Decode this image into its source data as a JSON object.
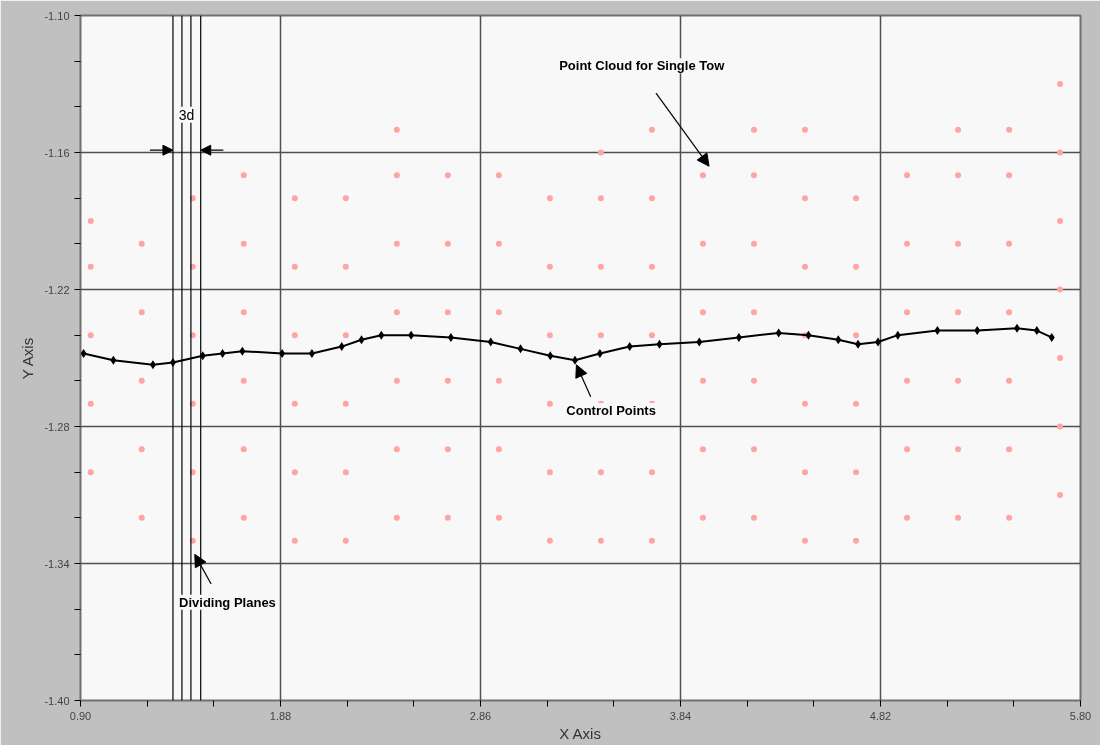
{
  "chart_data": {
    "type": "scatter",
    "xlabel": "X Axis",
    "ylabel": "Y Axis",
    "xlim": [
      0.9,
      5.8
    ],
    "xticks": [
      {
        "value": 0.9,
        "label": "0.90"
      },
      {
        "value": 1.227,
        "label": null
      },
      {
        "value": 1.553,
        "label": null
      },
      1.88,
      {
        "value": 2.207,
        "label": null
      },
      {
        "value": 2.533,
        "label": null
      },
      2.86,
      {
        "value": 3.187,
        "label": null
      },
      {
        "value": 3.513,
        "label": null
      },
      3.84,
      {
        "value": 4.167,
        "label": null
      },
      {
        "value": 4.493,
        "label": null
      },
      4.82,
      {
        "value": 5.147,
        "label": null
      },
      {
        "value": 5.473,
        "label": null
      },
      {
        "value": 5.8,
        "label": "5.80"
      }
    ],
    "ylim": [
      -1.4,
      -1.1
    ],
    "yticks": [
      {
        "value": -1.4,
        "label": "-1.40"
      },
      {
        "value": -1.38,
        "label": null
      },
      {
        "value": -1.36,
        "label": null
      },
      -1.34,
      {
        "value": -1.32,
        "label": null
      },
      {
        "value": -1.3,
        "label": null
      },
      -1.28,
      {
        "value": -1.26,
        "label": null
      },
      {
        "value": -1.24,
        "label": null
      },
      -1.22,
      {
        "value": -1.2,
        "label": null
      },
      {
        "value": -1.18,
        "label": null
      },
      -1.16,
      {
        "value": -1.14,
        "label": null
      },
      {
        "value": -1.12,
        "label": null
      },
      {
        "value": -1.1,
        "label": "-1.10"
      }
    ],
    "grid": true,
    "series": [
      {
        "color": "#ffa3a3",
        "marker": "circle",
        "x": [
          0.95,
          0.95,
          0.95,
          0.95,
          0.95,
          1.2,
          1.2,
          1.2,
          1.2,
          1.2,
          1.45,
          1.45,
          1.45,
          1.45,
          1.45,
          1.45,
          1.7,
          1.7,
          1.7,
          1.7,
          1.7,
          1.7,
          1.95,
          1.95,
          1.95,
          1.95,
          1.95,
          1.95,
          2.2,
          2.2,
          2.2,
          2.2,
          2.2,
          2.2,
          2.45,
          2.45,
          2.45,
          2.45,
          2.45,
          2.45,
          2.45,
          2.7,
          2.7,
          2.7,
          2.7,
          2.7,
          2.7,
          2.95,
          2.95,
          2.95,
          2.95,
          2.95,
          2.95,
          3.2,
          3.2,
          3.2,
          3.2,
          3.2,
          3.2,
          3.45,
          3.45,
          3.45,
          3.45,
          3.45,
          3.45,
          3.45,
          3.7,
          3.7,
          3.7,
          3.7,
          3.7,
          3.7,
          3.7,
          3.95,
          3.95,
          3.95,
          3.95,
          3.95,
          3.95,
          4.2,
          4.2,
          4.2,
          4.2,
          4.2,
          4.2,
          4.2,
          4.45,
          4.45,
          4.45,
          4.45,
          4.45,
          4.45,
          4.45,
          4.7,
          4.7,
          4.7,
          4.7,
          4.7,
          4.7,
          4.95,
          4.95,
          4.95,
          4.95,
          4.95,
          4.95,
          5.2,
          5.2,
          5.2,
          5.2,
          5.2,
          5.2,
          5.2,
          5.45,
          5.45,
          5.45,
          5.45,
          5.45,
          5.45,
          5.45,
          5.7,
          5.7,
          5.7,
          5.7,
          5.7,
          5.7,
          5.7
        ],
        "values": [
          -1.3,
          -1.27,
          -1.24,
          -1.21,
          -1.19,
          -1.32,
          -1.29,
          -1.26,
          -1.23,
          -1.2,
          -1.33,
          -1.3,
          -1.27,
          -1.24,
          -1.21,
          -1.18,
          -1.32,
          -1.29,
          -1.26,
          -1.23,
          -1.2,
          -1.17,
          -1.33,
          -1.3,
          -1.27,
          -1.24,
          -1.21,
          -1.18,
          -1.33,
          -1.3,
          -1.27,
          -1.24,
          -1.21,
          -1.18,
          -1.32,
          -1.29,
          -1.26,
          -1.23,
          -1.2,
          -1.17,
          -1.15,
          -1.32,
          -1.29,
          -1.26,
          -1.23,
          -1.2,
          -1.17,
          -1.32,
          -1.29,
          -1.26,
          -1.23,
          -1.2,
          -1.17,
          -1.33,
          -1.3,
          -1.27,
          -1.24,
          -1.21,
          -1.18,
          -1.33,
          -1.3,
          -1.27,
          -1.24,
          -1.21,
          -1.18,
          -1.16,
          -1.33,
          -1.3,
          -1.27,
          -1.24,
          -1.21,
          -1.18,
          -1.15,
          -1.32,
          -1.29,
          -1.26,
          -1.23,
          -1.2,
          -1.17,
          -1.32,
          -1.29,
          -1.26,
          -1.23,
          -1.2,
          -1.17,
          -1.15,
          -1.33,
          -1.3,
          -1.27,
          -1.24,
          -1.21,
          -1.18,
          -1.15,
          -1.33,
          -1.3,
          -1.27,
          -1.24,
          -1.21,
          -1.18,
          -1.32,
          -1.29,
          -1.26,
          -1.23,
          -1.2,
          -1.17,
          -1.32,
          -1.29,
          -1.26,
          -1.23,
          -1.2,
          -1.17,
          -1.15,
          -1.32,
          -1.29,
          -1.26,
          -1.23,
          -1.2,
          -1.17,
          -1.15,
          -1.31,
          -1.28,
          -1.25,
          -1.22,
          -1.19,
          -1.16,
          -1.13
        ]
      },
      {
        "type": "line",
        "color": "#000000",
        "marker": "diamond",
        "x": [
          0.915,
          1.061,
          1.255,
          1.353,
          1.499,
          1.596,
          1.693,
          1.888,
          2.034,
          2.18,
          2.277,
          2.374,
          2.52,
          2.715,
          2.91,
          3.056,
          3.202,
          3.323,
          3.445,
          3.591,
          3.737,
          3.932,
          4.126,
          4.321,
          4.467,
          4.613,
          4.71,
          4.808,
          4.905,
          5.099,
          5.294,
          5.489,
          5.586,
          5.659
        ],
        "values": [
          -1.248,
          -1.251,
          -1.253,
          -1.252,
          -1.249,
          -1.248,
          -1.247,
          -1.248,
          -1.248,
          -1.245,
          -1.242,
          -1.24,
          -1.24,
          -1.241,
          -1.243,
          -1.246,
          -1.249,
          -1.251,
          -1.248,
          -1.245,
          -1.244,
          -1.243,
          -1.241,
          -1.239,
          -1.24,
          -1.242,
          -1.244,
          -1.243,
          -1.24,
          -1.238,
          -1.238,
          -1.237,
          -1.238,
          -1.241
        ]
      }
    ],
    "ref_lines": [
      {
        "axis": "x",
        "value": 1.353,
        "color": "#000000"
      },
      {
        "axis": "x",
        "value": 1.397,
        "color": "#000000"
      },
      {
        "axis": "x",
        "value": 1.441,
        "color": "#000000"
      },
      {
        "axis": "x",
        "value": 1.489,
        "color": "#000000"
      }
    ],
    "annotations": [
      "Point Cloud for Single Tow",
      {
        "text": "Control Points",
        "x": 3.33,
        "y": -1.253
      },
      {
        "text": "Dividing Planes",
        "x": 1.46,
        "y": -1.336
      },
      {
        "text": "3d",
        "x": 1.42,
        "y": -1.155
      }
    ]
  }
}
